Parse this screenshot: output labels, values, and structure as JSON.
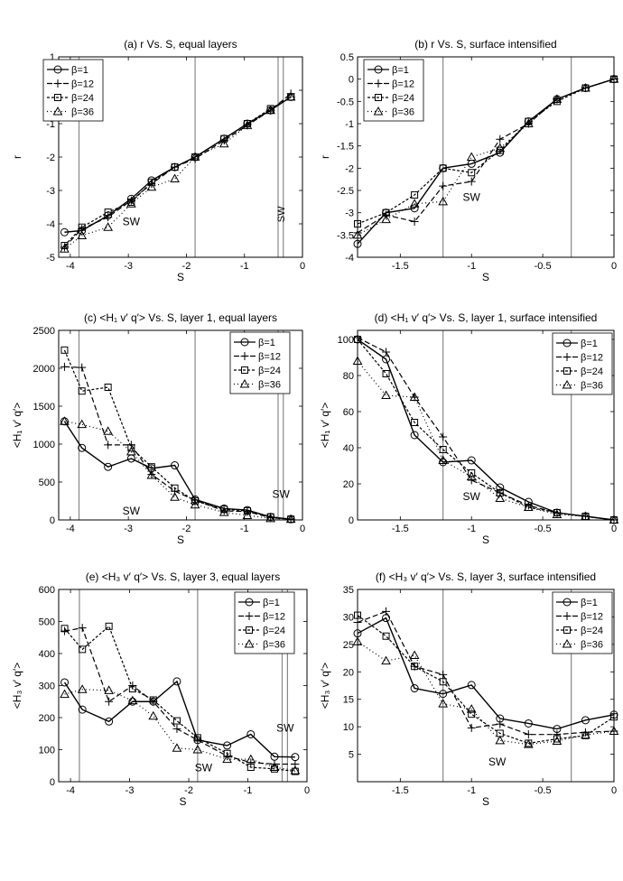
{
  "chart_data": [
    {
      "type": "line",
      "title": "(a) r Vs. S, equal layers",
      "xlabel": "S",
      "ylabel": "r",
      "xlim": [
        -4.2,
        0
      ],
      "ylim": [
        -5,
        1
      ],
      "xticks": [
        -4,
        -3,
        -2,
        -1,
        0
      ],
      "yticks": [
        -5,
        -4,
        -3,
        -2,
        -1,
        0,
        1
      ],
      "vlines": [
        -3.85,
        -1.85,
        -0.42,
        -0.33
      ],
      "annotations": [
        {
          "text": "SW",
          "x": -2.95,
          "y": -4.2
        },
        {
          "text": "SW",
          "x": -0.37,
          "y": -4.2,
          "rotate": true
        }
      ],
      "x": [
        -4.1,
        -3.8,
        -3.35,
        -2.95,
        -2.6,
        -2.2,
        -1.85,
        -1.35,
        -0.95,
        -0.55,
        -0.2
      ],
      "series": [
        {
          "name": "β=1",
          "values": [
            -4.25,
            -4.2,
            -3.75,
            -3.25,
            -2.7,
            -2.3,
            -2.0,
            -1.45,
            -1.0,
            -0.6,
            -0.2
          ]
        },
        {
          "name": "β=12",
          "values": [
            -4.7,
            -4.15,
            -3.8,
            -3.3,
            -2.8,
            -2.3,
            -2.05,
            -1.5,
            -1.05,
            -0.6,
            -0.1
          ]
        },
        {
          "name": "β=24",
          "values": [
            -4.65,
            -4.1,
            -3.65,
            -3.35,
            -2.75,
            -2.3,
            -2.0,
            -1.45,
            -1.0,
            -0.55,
            -0.2
          ]
        },
        {
          "name": "β=36",
          "values": [
            -4.75,
            -4.35,
            -4.1,
            -3.4,
            -2.9,
            -2.65,
            -2.0,
            -1.6,
            -1.05,
            -0.6,
            -0.2
          ]
        }
      ]
    },
    {
      "type": "line",
      "title": "(b) r Vs. S, surface intensified",
      "xlabel": "S",
      "ylabel": "r",
      "xlim": [
        -1.8,
        0
      ],
      "ylim": [
        -4,
        0.5
      ],
      "xticks": [
        -1.5,
        -1,
        -0.5,
        0
      ],
      "yticks": [
        -4,
        -3.5,
        -3,
        -2.5,
        -2,
        -1.5,
        -1,
        -0.5,
        0,
        0.5
      ],
      "vlines": [
        -1.2,
        -0.3
      ],
      "annotations": [
        {
          "text": "SW",
          "x": -1.0,
          "y": -2.85
        }
      ],
      "x": [
        -1.8,
        -1.6,
        -1.4,
        -1.2,
        -1.0,
        -0.8,
        -0.6,
        -0.4,
        -0.2,
        0
      ],
      "series": [
        {
          "name": "β=1",
          "values": [
            -3.7,
            -3.0,
            -2.9,
            -2.0,
            -1.9,
            -1.65,
            -0.95,
            -0.45,
            -0.2,
            0
          ]
        },
        {
          "name": "β=12",
          "values": [
            -3.45,
            -3.05,
            -3.2,
            -2.4,
            -2.3,
            -1.35,
            -1.0,
            -0.45,
            -0.2,
            0
          ]
        },
        {
          "name": "β=24",
          "values": [
            -3.25,
            -3.0,
            -2.6,
            -2.0,
            -2.1,
            -1.6,
            -0.95,
            -0.5,
            -0.2,
            0
          ]
        },
        {
          "name": "β=36",
          "values": [
            -3.5,
            -3.15,
            -2.8,
            -2.75,
            -1.75,
            -1.55,
            -1.0,
            -0.45,
            -0.2,
            0
          ]
        }
      ]
    },
    {
      "type": "line",
      "title": "(c) <H₁ v′ q′> Vs. S, layer 1, equal layers",
      "xlabel": "S",
      "ylabel": "<H₁ v′ q′>",
      "xlim": [
        -4.2,
        0
      ],
      "ylim": [
        0,
        2500
      ],
      "xticks": [
        -4,
        -3,
        -2,
        -1,
        0
      ],
      "yticks": [
        0,
        500,
        1000,
        1500,
        2000,
        2500
      ],
      "vlines": [
        -3.85,
        -1.85,
        -0.42,
        -0.33
      ],
      "annotations": [
        {
          "text": "SW",
          "x": -2.95,
          "y": 0
        },
        {
          "text": "SW",
          "x": -0.37,
          "y": 220
        }
      ],
      "x": [
        -4.1,
        -3.8,
        -3.35,
        -2.95,
        -2.6,
        -2.2,
        -1.85,
        -1.35,
        -0.95,
        -0.55,
        -0.2
      ],
      "series": [
        {
          "name": "β=1",
          "values": [
            1300,
            950,
            700,
            810,
            680,
            720,
            270,
            150,
            130,
            40,
            10
          ]
        },
        {
          "name": "β=12",
          "values": [
            2020,
            2010,
            990,
            990,
            600,
            380,
            260,
            120,
            110,
            30,
            10
          ]
        },
        {
          "name": "β=24",
          "values": [
            2240,
            1700,
            1750,
            950,
            700,
            420,
            250,
            140,
            120,
            40,
            10
          ]
        },
        {
          "name": "β=36",
          "values": [
            1300,
            1260,
            1170,
            900,
            590,
            300,
            200,
            100,
            60,
            20,
            10
          ]
        }
      ]
    },
    {
      "type": "line",
      "title": "(d) <H₁ v′ q′> Vs. S, layer 1, surface intensified",
      "xlabel": "S",
      "ylabel": "<H₁ v′ q′>",
      "xlim": [
        -1.8,
        0
      ],
      "ylim": [
        0,
        105
      ],
      "xticks": [
        -1.5,
        -1,
        -0.5,
        0
      ],
      "yticks": [
        0,
        20,
        40,
        60,
        80,
        100
      ],
      "vlines": [
        -1.2,
        -0.3
      ],
      "annotations": [
        {
          "text": "SW",
          "x": -1.0,
          "y": 8
        }
      ],
      "x": [
        -1.8,
        -1.6,
        -1.4,
        -1.2,
        -1.0,
        -0.8,
        -0.6,
        -0.4,
        -0.2,
        0
      ],
      "series": [
        {
          "name": "β=1",
          "values": [
            100,
            89,
            47,
            32,
            33,
            18,
            10,
            4,
            2,
            0
          ]
        },
        {
          "name": "β=12",
          "values": [
            101,
            93,
            68,
            46,
            22,
            15,
            8,
            4,
            2,
            0
          ]
        },
        {
          "name": "β=24",
          "values": [
            100,
            81,
            54,
            39,
            26,
            15,
            7,
            4,
            2,
            0
          ]
        },
        {
          "name": "β=36",
          "values": [
            88,
            69,
            68,
            33,
            24,
            12,
            7,
            3,
            2,
            0
          ]
        }
      ]
    },
    {
      "type": "line",
      "title": "(e) <H₃ v′ q′> Vs. S, layer 3, equal layers",
      "xlabel": "S",
      "ylabel": "<H₃ v′ q′>",
      "xlim": [
        -4.2,
        0
      ],
      "ylim": [
        0,
        600
      ],
      "xticks": [
        -4,
        -3,
        -2,
        -1,
        0
      ],
      "yticks": [
        0,
        100,
        200,
        300,
        400,
        500,
        600
      ],
      "vlines": [
        -3.85,
        -1.85,
        -0.42,
        -0.33
      ],
      "annotations": [
        {
          "text": "SW",
          "x": -1.75,
          "y": 15
        },
        {
          "text": "SW",
          "x": -0.37,
          "y": 140
        }
      ],
      "x": [
        -4.1,
        -3.8,
        -3.35,
        -2.95,
        -2.6,
        -2.2,
        -1.85,
        -1.35,
        -0.95,
        -0.55,
        -0.2
      ],
      "series": [
        {
          "name": "β=1",
          "values": [
            310,
            225,
            188,
            250,
            250,
            313,
            130,
            113,
            148,
            78,
            77
          ]
        },
        {
          "name": "β=12",
          "values": [
            470,
            480,
            250,
            300,
            250,
            165,
            130,
            80,
            60,
            55,
            55
          ]
        },
        {
          "name": "β=24",
          "values": [
            478,
            413,
            485,
            290,
            255,
            190,
            137,
            88,
            45,
            40,
            32
          ]
        },
        {
          "name": "β=36",
          "values": [
            273,
            288,
            285,
            253,
            205,
            105,
            100,
            70,
            70,
            45,
            35
          ]
        }
      ]
    },
    {
      "type": "line",
      "title": "(f) <H₃ v′ q′> Vs. S, layer 3, surface intensified",
      "xlabel": "S",
      "ylabel": "<H₃ v′ q′>",
      "xlim": [
        -1.8,
        0
      ],
      "ylim": [
        0,
        35
      ],
      "xticks": [
        -1.5,
        -1,
        -0.5,
        0
      ],
      "yticks": [
        5,
        10,
        15,
        20,
        25,
        30,
        35
      ],
      "vlines": [
        -1.2,
        -0.3
      ],
      "annotations": [
        {
          "text": "SW",
          "x": -0.82,
          "y": 2
        }
      ],
      "x": [
        -1.8,
        -1.6,
        -1.4,
        -1.2,
        -1.0,
        -0.8,
        -0.6,
        -0.4,
        -0.2,
        0
      ],
      "series": [
        {
          "name": "β=1",
          "values": [
            27,
            29.8,
            17,
            16,
            17.6,
            11.5,
            10.6,
            9.6,
            11.2,
            12.2
          ]
        },
        {
          "name": "β=12",
          "values": [
            29,
            31,
            21,
            19.5,
            9.8,
            10.5,
            8.6,
            8.6,
            9.0,
            9.2
          ]
        },
        {
          "name": "β=24",
          "values": [
            30.3,
            26.5,
            21,
            18.2,
            12.3,
            8.8,
            7.0,
            7.8,
            8.4,
            11.8
          ]
        },
        {
          "name": "β=36",
          "values": [
            25.5,
            22,
            23,
            14.2,
            13.2,
            7.5,
            6.8,
            7.4,
            8.5,
            9.2
          ]
        }
      ]
    }
  ],
  "legend_labels": [
    "β=1",
    "β=12",
    "β=24",
    "β=36"
  ]
}
